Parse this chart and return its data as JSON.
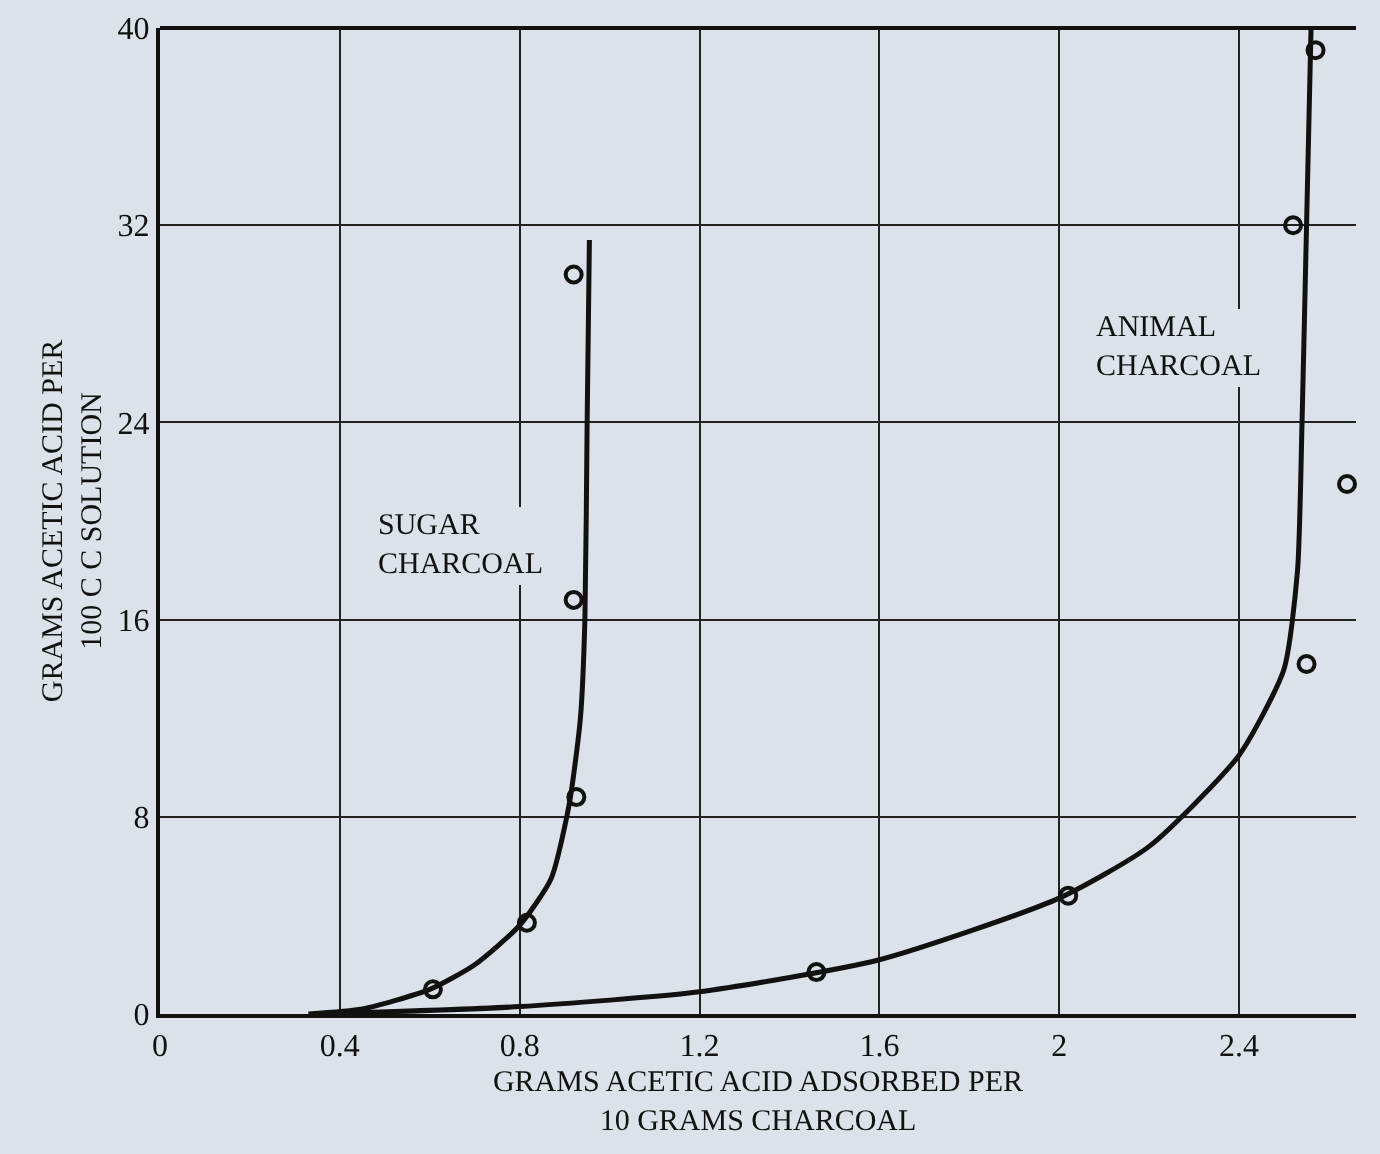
{
  "chart_data": {
    "type": "line",
    "xlabel": "GRAMS ACETIC ACID ADSORBED PER\n10 GRAMS CHARCOAL",
    "ylabel": "GRAMS ACETIC ACID PER\n100 C C SOLUTION",
    "xlim": [
      0,
      2.66
    ],
    "ylim": [
      0,
      40
    ],
    "xticks": [
      0,
      0.4,
      0.8,
      1.2,
      1.6,
      2.0,
      2.4
    ],
    "yticks": [
      0,
      8,
      16,
      24,
      32,
      40
    ],
    "grid": true,
    "series": [
      {
        "name": "SUGAR CHARCOAL",
        "color": "#111111",
        "marker": "none",
        "x": [
          0.33,
          0.45,
          0.6,
          0.7,
          0.8,
          0.87,
          0.91,
          0.935,
          0.945,
          0.95,
          0.955
        ],
        "values": [
          0,
          0.2,
          1.0,
          2.0,
          3.6,
          5.5,
          8.5,
          12,
          16,
          24,
          31.4
        ]
      },
      {
        "name": "ANIMAL CHARCOAL",
        "color": "#111111",
        "marker": "none",
        "x": [
          0.36,
          0.8,
          1.2,
          1.6,
          2.0,
          2.2,
          2.4,
          2.5,
          2.53,
          2.54,
          2.55,
          2.56
        ],
        "values": [
          0,
          0.3,
          0.9,
          2.2,
          4.7,
          6.8,
          10.5,
          14,
          18,
          24,
          32,
          40
        ]
      },
      {
        "type": "scatter",
        "color": "#111111",
        "marker": "circle",
        "x": [
          0.607,
          0.816,
          0.926,
          0.92,
          0.92
        ],
        "values": [
          1.0,
          3.7,
          8.8,
          16.8,
          30.0
        ]
      },
      {
        "type": "scatter",
        "color": "#111111",
        "marker": "circle",
        "x": [
          1.46,
          2.02,
          2.55,
          2.52,
          2.57,
          2.64
        ],
        "values": [
          1.7,
          4.8,
          14.2,
          32.0,
          39.1,
          21.5
        ]
      }
    ]
  }
}
